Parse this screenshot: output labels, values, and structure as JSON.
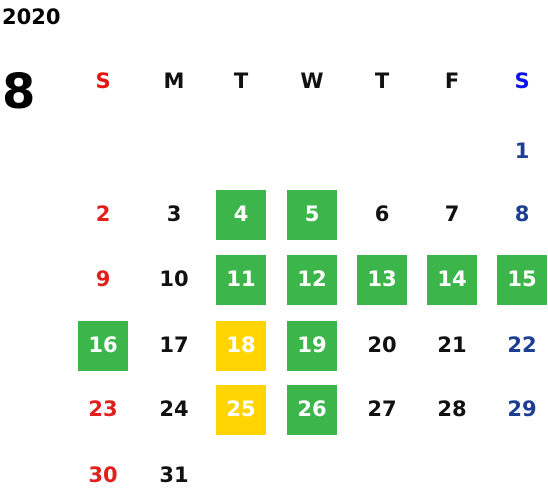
{
  "year": "2020",
  "month": "8",
  "weekdays": [
    "S",
    "M",
    "T",
    "W",
    "T",
    "F",
    "S"
  ],
  "colors": {
    "sunday_header": "#e8140f",
    "saturday_header": "#0b14e6",
    "sunday": "#e0201c",
    "saturday": "#1c3f94",
    "weekday": "#111111",
    "highlighted_text": "#ffffff"
  },
  "weeks": [
    [
      null,
      null,
      null,
      null,
      null,
      null,
      {
        "day": "1"
      }
    ],
    [
      {
        "day": "2"
      },
      {
        "day": "3"
      },
      {
        "day": "4",
        "highlight": "#3cb54a"
      },
      {
        "day": "5",
        "highlight": "#3cb54a"
      },
      {
        "day": "6"
      },
      {
        "day": "7"
      },
      {
        "day": "8"
      }
    ],
    [
      {
        "day": "9"
      },
      {
        "day": "10"
      },
      {
        "day": "11",
        "highlight": "#3cb54a"
      },
      {
        "day": "12",
        "highlight": "#3cb54a"
      },
      {
        "day": "13",
        "highlight": "#3cb54a"
      },
      {
        "day": "14",
        "highlight": "#3cb54a"
      },
      {
        "day": "15",
        "highlight": "#3cb54a"
      }
    ],
    [
      {
        "day": "16",
        "highlight": "#3cb54a"
      },
      {
        "day": "17"
      },
      {
        "day": "18",
        "highlight": "#ffd400"
      },
      {
        "day": "19",
        "highlight": "#3cb54a"
      },
      {
        "day": "20"
      },
      {
        "day": "21"
      },
      {
        "day": "22"
      }
    ],
    [
      {
        "day": "23"
      },
      {
        "day": "24"
      },
      {
        "day": "25",
        "highlight": "#ffd400"
      },
      {
        "day": "26",
        "highlight": "#3cb54a"
      },
      {
        "day": "27"
      },
      {
        "day": "28"
      },
      {
        "day": "29"
      }
    ],
    [
      {
        "day": "30"
      },
      {
        "day": "31"
      },
      null,
      null,
      null,
      null,
      null
    ]
  ]
}
